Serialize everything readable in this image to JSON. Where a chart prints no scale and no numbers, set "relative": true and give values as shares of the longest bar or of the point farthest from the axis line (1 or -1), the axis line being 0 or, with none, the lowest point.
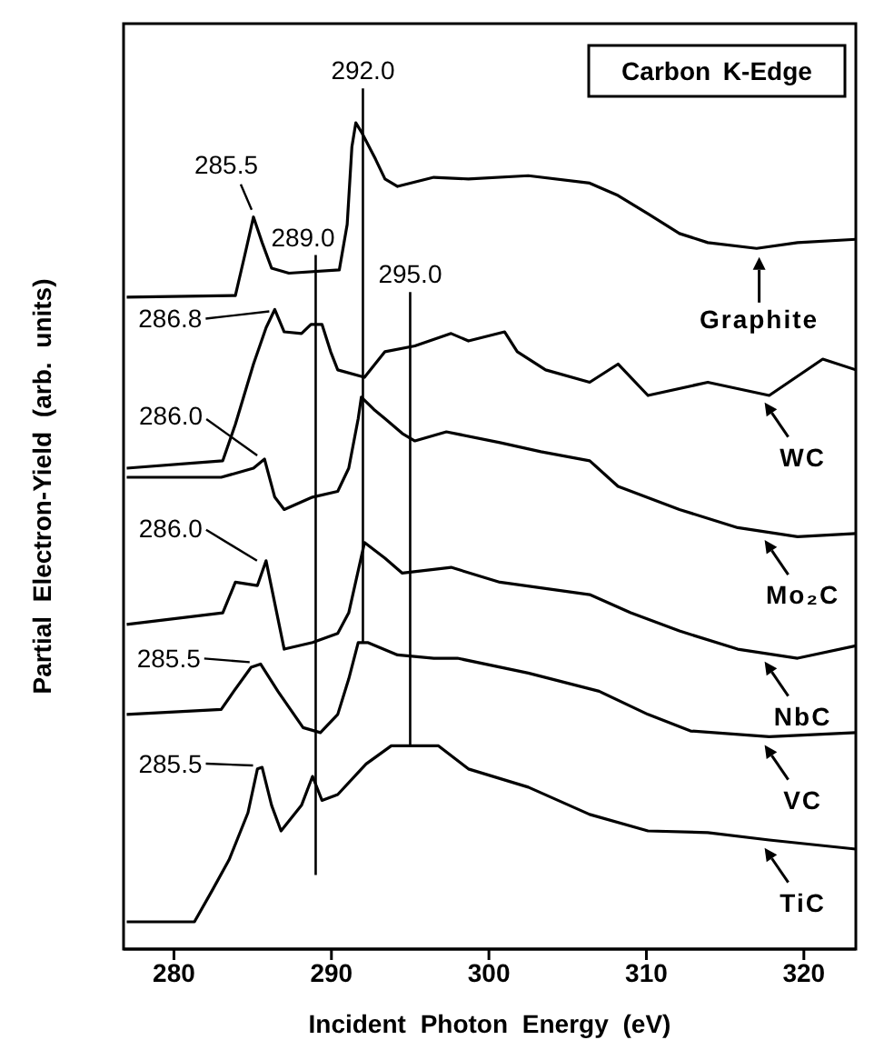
{
  "chart_data": {
    "type": "line",
    "relative": true,
    "title": "Carbon K-Edge",
    "xlabel": "Incident Photon Energy (eV)",
    "ylabel": "Partial Electron-Yield (arb. units)",
    "xlim": [
      276.8,
      323.3
    ],
    "xticks": [
      280,
      290,
      300,
      310,
      320
    ],
    "tick_labels": "x",
    "grid": false,
    "legend": "right",
    "marker": "none",
    "line_style": "solid",
    "series": [
      {
        "name": "Graphite",
        "color": "#000000",
        "x": [
          277,
          283.9,
          284.5,
          285.05,
          285.6,
          286.2,
          287.3,
          290.5,
          291,
          291.3,
          291.55,
          291.9,
          292.2,
          292.8,
          293.4,
          294.2,
          296.5,
          298.7,
          302.5,
          306.4,
          308.2,
          310.1,
          312.1,
          313.9,
          317,
          319.6,
          323.3
        ],
        "values": [
          0.789,
          0.791,
          0.84,
          0.886,
          0.855,
          0.824,
          0.818,
          0.822,
          0.877,
          0.971,
          1,
          0.989,
          0.978,
          0.956,
          0.932,
          0.923,
          0.934,
          0.932,
          0.936,
          0.927,
          0.912,
          0.89,
          0.866,
          0.855,
          0.848,
          0.855,
          0.859
        ]
      },
      {
        "name": "WC",
        "color": "#000000",
        "x": [
          277,
          283.1,
          283.9,
          285.05,
          285.85,
          286.4,
          287,
          288.1,
          288.7,
          289.4,
          289.95,
          290.4,
          292.1,
          293.4,
          295.3,
          297.6,
          298.7,
          301,
          301.8,
          303.6,
          306.4,
          308.2,
          310.1,
          313.9,
          317.8,
          321.2,
          323.3
        ],
        "values": [
          0.582,
          0.591,
          0.635,
          0.708,
          0.752,
          0.774,
          0.747,
          0.745,
          0.756,
          0.756,
          0.723,
          0.701,
          0.692,
          0.723,
          0.73,
          0.745,
          0.736,
          0.747,
          0.723,
          0.701,
          0.686,
          0.708,
          0.67,
          0.686,
          0.67,
          0.714,
          0.701
        ]
      },
      {
        "name": "Mo₂C",
        "color": "#000000",
        "x": [
          277,
          283,
          285.05,
          285.75,
          286.4,
          287,
          288.8,
          290.4,
          291.1,
          291.7,
          291.9,
          292.7,
          293.4,
          294.5,
          295.3,
          297.3,
          300.7,
          303.3,
          306.4,
          308.2,
          312.1,
          315.8,
          319.6,
          323.3
        ],
        "values": [
          0.571,
          0.571,
          0.582,
          0.593,
          0.547,
          0.532,
          0.547,
          0.554,
          0.582,
          0.642,
          0.668,
          0.653,
          0.642,
          0.624,
          0.615,
          0.626,
          0.613,
          0.602,
          0.591,
          0.56,
          0.532,
          0.51,
          0.499,
          0.503
        ]
      },
      {
        "name": "NbC",
        "color": "#000000",
        "x": [
          277,
          283.1,
          283.9,
          285.3,
          285.85,
          287,
          288.8,
          290.4,
          291.1,
          292.1,
          293.4,
          294.5,
          297.6,
          300.7,
          306.4,
          309,
          312.1,
          315.8,
          319.6,
          323.3
        ],
        "values": [
          0.393,
          0.407,
          0.444,
          0.44,
          0.47,
          0.363,
          0.371,
          0.382,
          0.407,
          0.492,
          0.473,
          0.455,
          0.462,
          0.444,
          0.429,
          0.407,
          0.385,
          0.363,
          0.352,
          0.367
        ]
      },
      {
        "name": "VC",
        "color": "#000000",
        "x": [
          277,
          283,
          283.8,
          284.9,
          285.5,
          286.6,
          288.2,
          289.3,
          290.4,
          291.1,
          291.7,
          292.3,
          294.2,
          296.5,
          298,
          302.5,
          307,
          310.1,
          312.8,
          317.8,
          323.3
        ],
        "values": [
          0.284,
          0.29,
          0.312,
          0.341,
          0.345,
          0.312,
          0.268,
          0.262,
          0.284,
          0.327,
          0.371,
          0.371,
          0.356,
          0.352,
          0.352,
          0.334,
          0.312,
          0.284,
          0.264,
          0.257,
          0.262
        ]
      },
      {
        "name": "TiC",
        "color": "#000000",
        "x": [
          277,
          281.3,
          282.4,
          283.5,
          284.7,
          285.3,
          285.6,
          286.2,
          286.8,
          288.1,
          288.8,
          289.4,
          290.4,
          292.2,
          293.8,
          295.3,
          296.8,
          298.7,
          302.5,
          306.4,
          310.1,
          313.9,
          317.8,
          323.3
        ],
        "values": [
          0.033,
          0.033,
          0.07,
          0.108,
          0.165,
          0.218,
          0.22,
          0.174,
          0.143,
          0.174,
          0.209,
          0.18,
          0.187,
          0.224,
          0.246,
          0.246,
          0.246,
          0.218,
          0.196,
          0.163,
          0.143,
          0.141,
          0.132,
          0.121
        ]
      }
    ],
    "ref_lines": [
      {
        "axis": "x",
        "value": 289.0,
        "label": "289.0"
      },
      {
        "axis": "x",
        "value": 292.0,
        "label": "292.0"
      },
      {
        "axis": "x",
        "value": 295.0,
        "label": "295.0"
      }
    ],
    "annotations": [
      {
        "text": "285.5",
        "x": 285.05,
        "y": 0.886
      },
      {
        "text": "286.8",
        "x": 286.4,
        "y": 0.774
      },
      {
        "text": "286.0",
        "x": 285.75,
        "y": 0.593
      },
      {
        "text": "286.0",
        "x": 285.85,
        "y": 0.47
      },
      {
        "text": "285.5",
        "x": 285.5,
        "y": 0.345
      },
      {
        "text": "285.5",
        "x": 285.6,
        "y": 0.22
      }
    ]
  }
}
